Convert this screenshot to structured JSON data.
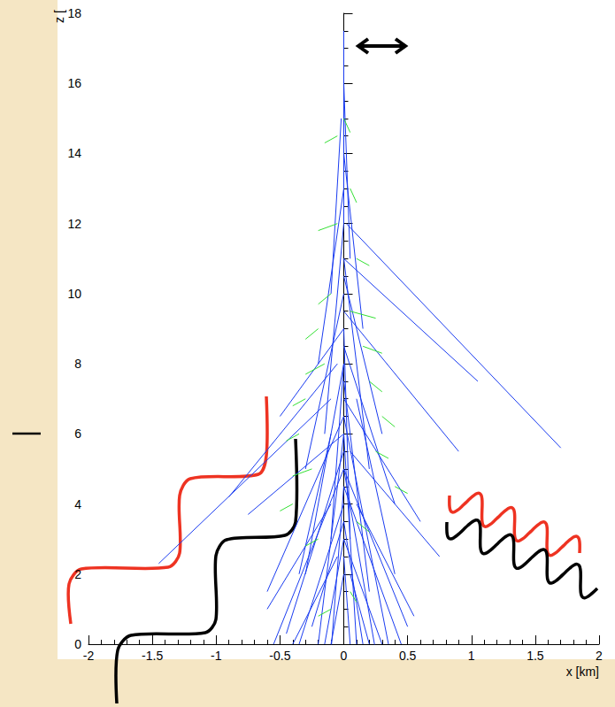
{
  "chart_data": {
    "type": "lines",
    "y_label": "z [",
    "x_label": "x [km]",
    "xlim": [
      -2,
      2
    ],
    "ylim": [
      0,
      18
    ],
    "xticks": [
      -2,
      -1.5,
      -1,
      -0.5,
      0,
      0.5,
      1,
      1.5,
      2
    ],
    "yticks": [
      0,
      2,
      4,
      6,
      8,
      10,
      12,
      14,
      16,
      18
    ],
    "series": [
      {
        "color": "#1a3cf0",
        "values": [
          [
            0,
            17.5,
            0,
            12
          ],
          [
            0,
            16,
            0.05,
            11
          ],
          [
            -0.02,
            15,
            -0.1,
            10
          ],
          [
            0,
            14,
            0.15,
            9
          ],
          [
            0,
            13,
            -0.2,
            8
          ],
          [
            0.02,
            12,
            1.7,
            5.6
          ],
          [
            0,
            11,
            1.05,
            7.5
          ],
          [
            0,
            10.5,
            0.3,
            6
          ],
          [
            0,
            10,
            -0.3,
            5
          ],
          [
            0,
            9.5,
            0.9,
            5.5
          ],
          [
            0,
            9,
            -0.5,
            6.5
          ],
          [
            0,
            8.5,
            0.4,
            4
          ],
          [
            -0.05,
            8,
            -0.9,
            4.2
          ],
          [
            0,
            8,
            -0.3,
            2
          ],
          [
            0,
            7.5,
            0.2,
            1.5
          ],
          [
            -0.1,
            7,
            -1.45,
            2.3
          ],
          [
            0,
            7,
            0.6,
            3.5
          ],
          [
            0,
            6.5,
            -0.6,
            1.5
          ],
          [
            0,
            6.5,
            0.35,
            0
          ],
          [
            0,
            6,
            -0.75,
            3.7
          ],
          [
            0,
            6,
            0.1,
            0
          ],
          [
            0,
            6,
            -0.2,
            0
          ],
          [
            0.05,
            5.5,
            0.75,
            2.5
          ],
          [
            0,
            5.5,
            -0.45,
            0.3
          ],
          [
            0,
            5,
            0.5,
            0.5
          ],
          [
            0,
            5,
            -0.55,
            0
          ],
          [
            0,
            5,
            0.25,
            -0.2
          ],
          [
            0,
            4.5,
            -0.1,
            -0.2
          ],
          [
            0,
            4.5,
            0.45,
            0
          ],
          [
            0.1,
            4,
            0.55,
            0.8
          ],
          [
            0,
            4,
            -0.35,
            0
          ],
          [
            -0.1,
            4,
            -0.6,
            1
          ],
          [
            0,
            3.5,
            0.15,
            0
          ],
          [
            0,
            3.5,
            -0.25,
            0.5
          ],
          [
            0,
            3,
            0.3,
            0
          ],
          [
            0,
            3,
            -0.15,
            0
          ],
          [
            0,
            2.5,
            0.05,
            0
          ],
          [
            -0.05,
            2.5,
            -0.4,
            0
          ],
          [
            0.05,
            2,
            0.2,
            0
          ],
          [
            0,
            2,
            -0.1,
            0
          ],
          [
            0,
            12,
            -0.15,
            6
          ],
          [
            0,
            11,
            0.2,
            5
          ],
          [
            0,
            9,
            0.05,
            3
          ],
          [
            0,
            8,
            -0.1,
            3
          ],
          [
            0.1,
            7,
            0.4,
            2
          ],
          [
            -0.1,
            6,
            -0.35,
            2
          ]
        ]
      },
      {
        "color": "#33e033",
        "values": [
          [
            0,
            15,
            0.05,
            14.6
          ],
          [
            -0.05,
            14.5,
            -0.15,
            14.3
          ],
          [
            0.05,
            13,
            0.1,
            12.6
          ],
          [
            -0.05,
            12,
            -0.2,
            11.8
          ],
          [
            0.1,
            11,
            0.2,
            10.8
          ],
          [
            -0.1,
            10,
            -0.2,
            9.7
          ],
          [
            0.05,
            9.5,
            0.25,
            9.3
          ],
          [
            -0.2,
            9,
            -0.3,
            8.7
          ],
          [
            0.15,
            8.5,
            0.3,
            8.3
          ],
          [
            -0.15,
            8,
            -0.3,
            7.7
          ],
          [
            0.2,
            7.5,
            0.3,
            7.2
          ],
          [
            -0.3,
            7,
            -0.4,
            6.8
          ],
          [
            0.3,
            6.5,
            0.4,
            6.2
          ],
          [
            -0.35,
            6,
            -0.45,
            5.8
          ],
          [
            0.25,
            5.5,
            0.35,
            5.3
          ],
          [
            -0.25,
            5,
            -0.4,
            4.8
          ],
          [
            0.4,
            4.5,
            0.5,
            4.3
          ],
          [
            -0.4,
            4,
            -0.5,
            3.8
          ],
          [
            0.1,
            3.5,
            0.2,
            3.2
          ],
          [
            -0.2,
            3,
            -0.3,
            2.8
          ],
          [
            0.05,
            1.5,
            0.1,
            1.2
          ],
          [
            -0.1,
            1,
            -0.2,
            0.8
          ]
        ]
      }
    ]
  }
}
